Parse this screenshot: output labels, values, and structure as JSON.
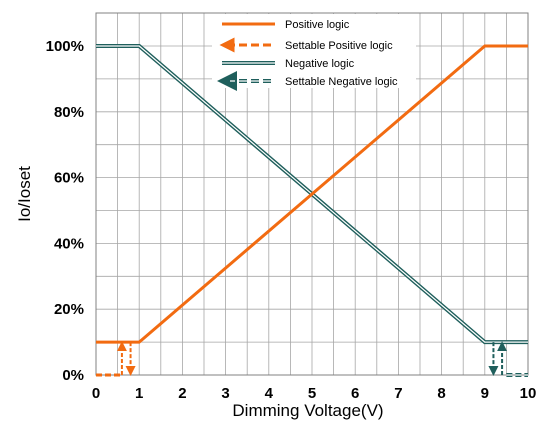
{
  "chart_data": {
    "type": "line",
    "xlabel": "Dimming Voltage(V)",
    "ylabel": "Io/Ioset",
    "xlim": [
      0,
      10
    ],
    "ylim": [
      0,
      100
    ],
    "x_ticks": [
      "0",
      "1",
      "2",
      "3",
      "4",
      "5",
      "6",
      "7",
      "8",
      "9",
      "10"
    ],
    "y_ticks": [
      "0%",
      "20%",
      "40%",
      "60%",
      "80%",
      "100%"
    ],
    "grid": true,
    "legend_position": "top-center",
    "colors": {
      "positive": "#f26b11",
      "negative": "#1f5f5c",
      "grid": "#a6a6a6"
    },
    "series": [
      {
        "name": "Positive logic",
        "style": "solid",
        "points": [
          [
            0,
            10
          ],
          [
            1,
            10
          ],
          [
            9,
            100
          ],
          [
            10,
            100
          ]
        ]
      },
      {
        "name": "Settable Positive logic",
        "style": "dashed",
        "points": [
          [
            0,
            0
          ],
          [
            0.6,
            0
          ],
          [
            0.6,
            10
          ],
          [
            0.8,
            10
          ],
          [
            0.8,
            0
          ]
        ]
      },
      {
        "name": "Negative logic",
        "style": "double",
        "points": [
          [
            0,
            100
          ],
          [
            1,
            100
          ],
          [
            9,
            10
          ],
          [
            10,
            10
          ]
        ]
      },
      {
        "name": "Settable Negative logic",
        "style": "dashed-double",
        "points": [
          [
            9.2,
            10
          ],
          [
            9.2,
            0
          ],
          [
            9.4,
            0
          ],
          [
            9.4,
            10
          ],
          [
            9.5,
            0
          ],
          [
            10,
            0
          ]
        ]
      }
    ]
  }
}
